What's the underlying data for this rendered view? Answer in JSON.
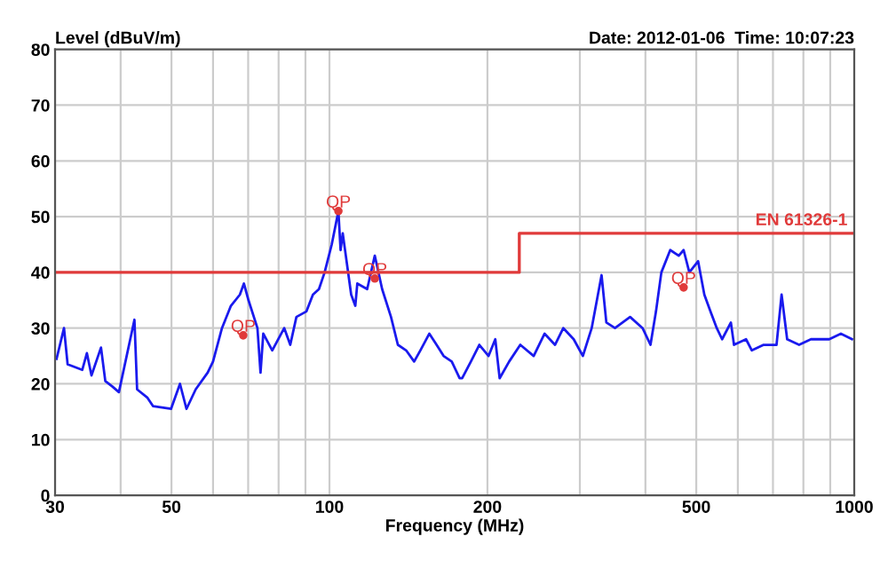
{
  "chart_data": {
    "type": "line",
    "xlabel": "Frequency (MHz)",
    "ylabel": "Level (dBuV/m)",
    "annotations": [
      "Date: 2012-01-06  Time: 10:07:23",
      {
        "text": "QP",
        "x": 68.5,
        "y": 28.7
      },
      {
        "text": "QP",
        "x": 104,
        "y": 51
      },
      {
        "text": "QP",
        "x": 122,
        "y": 38.9
      },
      {
        "text": "QP",
        "x": 473,
        "y": 37.3
      }
    ],
    "log": "x",
    "xlim": [
      30,
      1000
    ],
    "xticks": [
      30,
      {
        "value": 40,
        "label": null
      },
      50,
      {
        "value": 60,
        "label": null
      },
      {
        "value": 70,
        "label": null
      },
      {
        "value": 80,
        "label": null
      },
      {
        "value": 90,
        "label": null
      },
      100,
      200,
      {
        "value": 300,
        "label": null
      },
      {
        "value": 400,
        "label": null
      },
      500,
      {
        "value": 600,
        "label": null
      },
      {
        "value": 700,
        "label": null
      },
      {
        "value": 800,
        "label": null
      },
      {
        "value": 900,
        "label": null
      },
      1000
    ],
    "ylim": [
      0,
      80
    ],
    "yticks": [
      0,
      10,
      20,
      30,
      40,
      50,
      60,
      70,
      80
    ],
    "grid": true,
    "legend": false,
    "series": [
      {
        "color": "#1a1aee",
        "marker": "none",
        "line_style": "solid",
        "x": [
          30.2,
          31.2,
          31.7,
          33.8,
          34.5,
          35.2,
          36.7,
          37.4,
          38.6,
          39.7,
          42.5,
          43.0,
          45.0,
          46.1,
          49.9,
          51.9,
          53.4,
          55.6,
          58.6,
          60.0,
          62.4,
          64.9,
          67.5,
          68.7,
          70.1,
          72.9,
          73.9,
          74.8,
          77.8,
          82.0,
          84.2,
          86.5,
          90.4,
          93.0,
          95.5,
          97.9,
          101,
          104,
          105,
          106,
          110,
          112,
          113,
          118,
          122,
          126,
          131,
          135,
          140,
          145,
          149,
          155,
          160,
          165,
          171,
          177,
          179,
          186,
          193,
          201,
          207,
          211,
          220,
          231,
          245,
          257,
          269,
          279,
          292,
          304,
          316,
          330,
          337,
          350,
          374,
          395,
          409,
          419,
          429,
          446,
          463,
          473,
          485,
          504,
          518,
          532,
          547,
          560,
          582,
          590,
          622,
          638,
          672,
          711,
          727,
          745,
          785,
          827,
          896,
          943,
          990
        ],
        "values": [
          24.5,
          30,
          23.5,
          22.5,
          25.5,
          21.5,
          26.5,
          20.5,
          19.5,
          18.5,
          31.5,
          19,
          17.5,
          16,
          15.5,
          20,
          15.5,
          19,
          22,
          24,
          30,
          34,
          36,
          38,
          35,
          30,
          22,
          29,
          26,
          30,
          27,
          32,
          33,
          36,
          37,
          40,
          45,
          51,
          44,
          47,
          36,
          34,
          38,
          37,
          43,
          37,
          32,
          27,
          26,
          24,
          26,
          29,
          27,
          25,
          24,
          21,
          21,
          24,
          27,
          25,
          28,
          21,
          24,
          27,
          25,
          29,
          27,
          30,
          28,
          25,
          30,
          39.5,
          31,
          30,
          32,
          30,
          27,
          33,
          40,
          44,
          43,
          44,
          40,
          42,
          36,
          33,
          30,
          28,
          31,
          27,
          28,
          26,
          27,
          27,
          36,
          28,
          27,
          28,
          28,
          29,
          28
        ]
      },
      {
        "type": "line",
        "name": "EN 61326-1",
        "color": "#e03a3a",
        "marker": "none",
        "line_style": "solid",
        "x": [
          30,
          230,
          230,
          1000
        ],
        "values": [
          40,
          40,
          47,
          47
        ]
      },
      {
        "type": "scatter",
        "color": "#e03a3a",
        "marker": "circle",
        "x": [
          68.5,
          104,
          122,
          473
        ],
        "values": [
          28.7,
          51,
          38.9,
          37.3
        ]
      }
    ]
  }
}
